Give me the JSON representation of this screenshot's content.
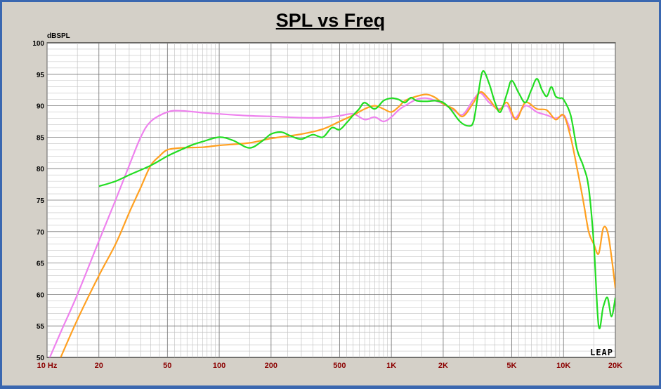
{
  "chart_data": {
    "type": "line",
    "title": "SPL vs Freq",
    "ylabel": "dBSPL",
    "xlabel": "",
    "xscale": "log",
    "xlim": [
      10,
      20000
    ],
    "ylim": [
      50,
      100
    ],
    "grid": true,
    "yticks": [
      "100",
      "95",
      "90",
      "85",
      "80",
      "75",
      "70",
      "65",
      "60",
      "55",
      "50"
    ],
    "xticks": [
      {
        "value": 10,
        "label": "10 Hz"
      },
      {
        "value": 20,
        "label": "20"
      },
      {
        "value": 50,
        "label": "50"
      },
      {
        "value": 100,
        "label": "100"
      },
      {
        "value": 200,
        "label": "200"
      },
      {
        "value": 500,
        "label": "500"
      },
      {
        "value": 1000,
        "label": "1K"
      },
      {
        "value": 2000,
        "label": "2K"
      },
      {
        "value": 5000,
        "label": "5K"
      },
      {
        "value": 10000,
        "label": "10K"
      },
      {
        "value": 20000,
        "label": "20K"
      }
    ],
    "logo": "LEAP",
    "series": [
      {
        "color": "#ee82ee",
        "points": [
          [
            10,
            49
          ],
          [
            12,
            54
          ],
          [
            15,
            60
          ],
          [
            20,
            68.5
          ],
          [
            25,
            75
          ],
          [
            30,
            80.5
          ],
          [
            35,
            85
          ],
          [
            40,
            87.5
          ],
          [
            50,
            89
          ],
          [
            60,
            89.2
          ],
          [
            80,
            88.9
          ],
          [
            100,
            88.7
          ],
          [
            150,
            88.4
          ],
          [
            200,
            88.3
          ],
          [
            300,
            88.1
          ],
          [
            400,
            88.1
          ],
          [
            500,
            88.4
          ],
          [
            600,
            88.7
          ],
          [
            700,
            87.8
          ],
          [
            800,
            88.2
          ],
          [
            900,
            87.5
          ],
          [
            1000,
            88.2
          ],
          [
            1100,
            89.3
          ],
          [
            1200,
            90
          ],
          [
            1400,
            91
          ],
          [
            1600,
            91.2
          ],
          [
            1800,
            90.8
          ],
          [
            2000,
            90.3
          ],
          [
            2300,
            89.3
          ],
          [
            2600,
            88.6
          ],
          [
            3000,
            91
          ],
          [
            3300,
            92
          ],
          [
            3700,
            90.5
          ],
          [
            4200,
            89.5
          ],
          [
            4700,
            90
          ],
          [
            5200,
            88
          ],
          [
            6000,
            90
          ],
          [
            7000,
            89
          ],
          [
            8000,
            88.5
          ],
          [
            9000,
            88
          ],
          [
            10000,
            88.5
          ],
          [
            10500,
            87.5
          ],
          [
            11000,
            86
          ]
        ]
      },
      {
        "color": "#ffa020",
        "points": [
          [
            12,
            50
          ],
          [
            15,
            56
          ],
          [
            20,
            63
          ],
          [
            25,
            68
          ],
          [
            30,
            73
          ],
          [
            35,
            77
          ],
          [
            40,
            80.5
          ],
          [
            45,
            82
          ],
          [
            50,
            83
          ],
          [
            60,
            83.3
          ],
          [
            80,
            83.4
          ],
          [
            100,
            83.7
          ],
          [
            150,
            84.1
          ],
          [
            200,
            84.8
          ],
          [
            300,
            85.5
          ],
          [
            400,
            86.3
          ],
          [
            500,
            87.5
          ],
          [
            600,
            88.5
          ],
          [
            700,
            89.5
          ],
          [
            800,
            90
          ],
          [
            900,
            89.5
          ],
          [
            1000,
            89
          ],
          [
            1100,
            89.8
          ],
          [
            1200,
            90.8
          ],
          [
            1400,
            91.5
          ],
          [
            1600,
            91.8
          ],
          [
            1800,
            91.3
          ],
          [
            2000,
            90.3
          ],
          [
            2300,
            89.5
          ],
          [
            2600,
            88.3
          ],
          [
            3000,
            90.5
          ],
          [
            3300,
            92.2
          ],
          [
            3700,
            91
          ],
          [
            4200,
            89.3
          ],
          [
            4700,
            90.5
          ],
          [
            5300,
            87.8
          ],
          [
            6000,
            90.5
          ],
          [
            7000,
            89.5
          ],
          [
            8000,
            89.3
          ],
          [
            9000,
            87.8
          ],
          [
            10000,
            88.5
          ],
          [
            11000,
            85
          ],
          [
            12000,
            80
          ],
          [
            13000,
            75
          ],
          [
            14000,
            70
          ],
          [
            15000,
            68
          ],
          [
            16000,
            66.5
          ],
          [
            17000,
            70.5
          ],
          [
            18000,
            70
          ],
          [
            19000,
            66
          ],
          [
            20000,
            61
          ]
        ]
      },
      {
        "color": "#22dd22",
        "points": [
          [
            20,
            77.2
          ],
          [
            25,
            78
          ],
          [
            30,
            79
          ],
          [
            40,
            80.5
          ],
          [
            50,
            82
          ],
          [
            60,
            83
          ],
          [
            70,
            83.8
          ],
          [
            80,
            84.3
          ],
          [
            100,
            85
          ],
          [
            120,
            84.5
          ],
          [
            150,
            83.3
          ],
          [
            180,
            84.5
          ],
          [
            200,
            85.5
          ],
          [
            230,
            85.8
          ],
          [
            260,
            85.2
          ],
          [
            300,
            84.7
          ],
          [
            350,
            85.4
          ],
          [
            400,
            85
          ],
          [
            450,
            86.5
          ],
          [
            500,
            86.2
          ],
          [
            550,
            87.3
          ],
          [
            600,
            88.5
          ],
          [
            650,
            89.5
          ],
          [
            700,
            90.5
          ],
          [
            800,
            89.5
          ],
          [
            900,
            90.8
          ],
          [
            1000,
            91.2
          ],
          [
            1100,
            91
          ],
          [
            1200,
            90.5
          ],
          [
            1300,
            91.3
          ],
          [
            1400,
            90.8
          ],
          [
            1600,
            90.7
          ],
          [
            1800,
            90.8
          ],
          [
            2000,
            90.5
          ],
          [
            2200,
            89.5
          ],
          [
            2500,
            87.5
          ],
          [
            2800,
            86.8
          ],
          [
            3000,
            87.5
          ],
          [
            3200,
            92
          ],
          [
            3400,
            95.5
          ],
          [
            3700,
            93.5
          ],
          [
            4000,
            90.5
          ],
          [
            4300,
            89
          ],
          [
            4700,
            92
          ],
          [
            5000,
            94
          ],
          [
            5500,
            92
          ],
          [
            6000,
            90.5
          ],
          [
            6500,
            92.5
          ],
          [
            7000,
            94.3
          ],
          [
            7500,
            92.5
          ],
          [
            8000,
            91.5
          ],
          [
            8500,
            93
          ],
          [
            9000,
            91.5
          ],
          [
            9500,
            91.2
          ],
          [
            10000,
            91
          ],
          [
            11000,
            88.5
          ],
          [
            12000,
            83
          ],
          [
            13000,
            80.5
          ],
          [
            14000,
            77
          ],
          [
            15000,
            68
          ],
          [
            16000,
            55
          ],
          [
            17000,
            58
          ],
          [
            18000,
            59.5
          ],
          [
            19000,
            56.5
          ],
          [
            20000,
            59.5
          ]
        ]
      }
    ]
  }
}
